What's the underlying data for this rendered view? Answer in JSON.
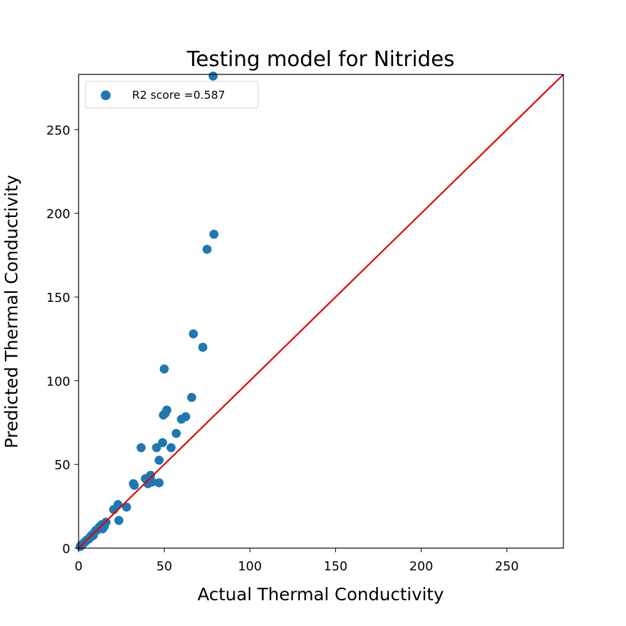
{
  "chart_data": {
    "type": "scatter",
    "title": "Testing model for Nitrides",
    "xlabel": "Actual Thermal Conductivity",
    "ylabel": "Predicted Thermal Conductivity",
    "xlim": [
      0,
      283
    ],
    "ylim": [
      0,
      283
    ],
    "xticks": [
      0,
      50,
      100,
      150,
      200,
      250
    ],
    "yticks": [
      0,
      50,
      100,
      150,
      200,
      250
    ],
    "grid": false,
    "legend_position": "top-left",
    "series": [
      {
        "name": "R2 score =0.587",
        "color": "#1f77b4",
        "points": [
          [
            78.5,
            282
          ],
          [
            79,
            187.5
          ],
          [
            75,
            178.5
          ],
          [
            67,
            128
          ],
          [
            72.5,
            120
          ],
          [
            50,
            107
          ],
          [
            66,
            90
          ],
          [
            51.5,
            82.5
          ],
          [
            49.5,
            79.5
          ],
          [
            50.5,
            80.5
          ],
          [
            62.5,
            78.5
          ],
          [
            60,
            77
          ],
          [
            57,
            68.5
          ],
          [
            49,
            63
          ],
          [
            36.5,
            60
          ],
          [
            45.5,
            60
          ],
          [
            54,
            60
          ],
          [
            47,
            52.5
          ],
          [
            32,
            38.5
          ],
          [
            32.5,
            37.5
          ],
          [
            39,
            41.5
          ],
          [
            42,
            43.5
          ],
          [
            40.5,
            38.5
          ],
          [
            43,
            39.5
          ],
          [
            47,
            39
          ],
          [
            20.5,
            23
          ],
          [
            23,
            26
          ],
          [
            28,
            24.5
          ],
          [
            23.5,
            16.5
          ],
          [
            16,
            15.5
          ],
          [
            13.5,
            14
          ],
          [
            15,
            13
          ],
          [
            12,
            12.5
          ],
          [
            14,
            11.5
          ],
          [
            11,
            11
          ],
          [
            10,
            10.5
          ],
          [
            9,
            9
          ],
          [
            8,
            8
          ],
          [
            8.5,
            7.5
          ],
          [
            7,
            7
          ],
          [
            6.5,
            6
          ],
          [
            6,
            5.5
          ],
          [
            5,
            5
          ],
          [
            4.5,
            4.5
          ],
          [
            4,
            4
          ],
          [
            3.5,
            3.5
          ],
          [
            3,
            3
          ],
          [
            2.5,
            2.5
          ],
          [
            2,
            2
          ],
          [
            1.5,
            1.5
          ],
          [
            1,
            1
          ]
        ]
      }
    ],
    "reference_line": {
      "from": [
        0,
        0
      ],
      "to": [
        283,
        283
      ],
      "color": "#e00000"
    }
  }
}
